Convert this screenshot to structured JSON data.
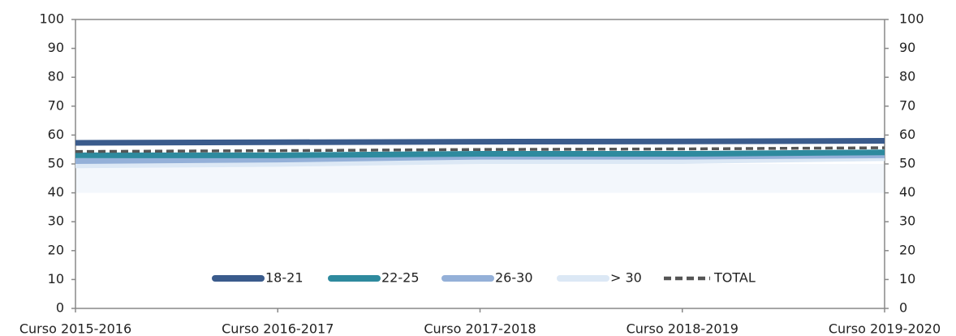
{
  "chart_data": {
    "type": "line",
    "categories": [
      "Curso 2015-2016",
      "Curso 2016-2017",
      "Curso 2017-2018",
      "Curso 2018-2019",
      "Curso 2019-2020"
    ],
    "series": [
      {
        "name": "18-21",
        "color": "#3a5b8c",
        "values": [
          57.3,
          57.5,
          57.7,
          57.8,
          58.0
        ]
      },
      {
        "name": "22-25",
        "color": "#2e8a9e",
        "values": [
          53.0,
          53.0,
          53.5,
          53.5,
          54.0
        ]
      },
      {
        "name": "26-30",
        "color": "#94b0d8",
        "values": [
          51.0,
          51.5,
          52.5,
          52.5,
          53.0
        ]
      },
      {
        "name": "> 30",
        "color": "#dce8f5",
        "values": [
          49.5,
          50.0,
          51.0,
          51.0,
          52.0
        ]
      },
      {
        "name": "TOTAL",
        "color": "#555555",
        "dashed": true,
        "values": [
          54.3,
          54.6,
          55.0,
          55.2,
          55.6
        ]
      }
    ],
    "ylim": [
      0,
      100
    ],
    "yticks": [
      0,
      10,
      20,
      30,
      40,
      50,
      60,
      70,
      80,
      90,
      100
    ],
    "y2lim": [
      0,
      100
    ],
    "y2ticks": [
      0,
      10,
      20,
      30,
      40,
      50,
      60,
      70,
      80,
      90,
      100
    ],
    "legend": "bottom"
  }
}
